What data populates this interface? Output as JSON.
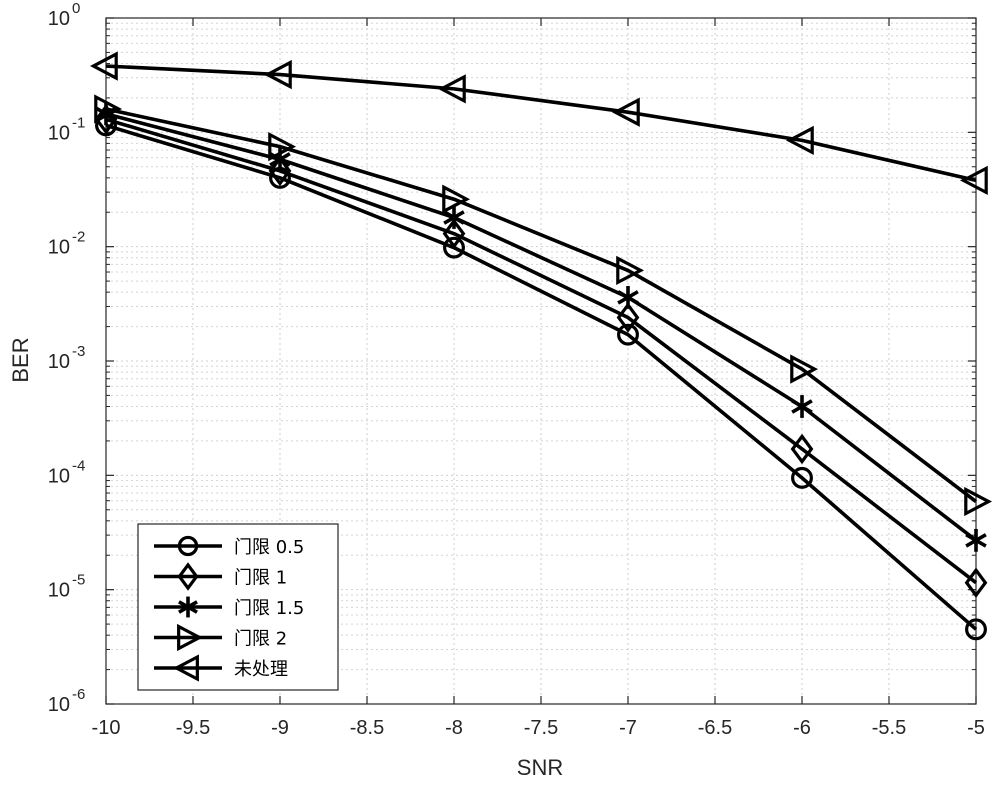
{
  "chart_data": {
    "type": "line",
    "title": "",
    "xlabel": "SNR",
    "ylabel": "BER",
    "xscale": "linear",
    "yscale": "log",
    "xlim": [
      -10,
      -5
    ],
    "ylim": [
      1e-06,
      1
    ],
    "grid": true,
    "minor_grid": true,
    "legend_position": "bottom-left",
    "x_ticks": [
      "-10",
      "-9.5",
      "-9",
      "-8.5",
      "-8",
      "-7.5",
      "-7",
      "-6.5",
      "-6",
      "-5.5",
      "-5"
    ],
    "y_ticks": [
      {
        "base": "10",
        "exp": "-6"
      },
      {
        "base": "10",
        "exp": "-5"
      },
      {
        "base": "10",
        "exp": "-4"
      },
      {
        "base": "10",
        "exp": "-3"
      },
      {
        "base": "10",
        "exp": "-2"
      },
      {
        "base": "10",
        "exp": "-1"
      },
      {
        "base": "10",
        "exp": "0"
      }
    ],
    "x": [
      -10,
      -9,
      -8,
      -7,
      -6,
      -5
    ],
    "series": [
      {
        "name": "门限 0.5",
        "marker": "circle",
        "color": "#000000",
        "values": [
          0.115,
          0.04,
          0.0098,
          0.0017,
          9.5e-05,
          4.5e-06
        ]
      },
      {
        "name": "门限 1",
        "marker": "diamond",
        "color": "#000000",
        "values": [
          0.13,
          0.046,
          0.013,
          0.0024,
          0.00017,
          1.15e-05
        ]
      },
      {
        "name": "门限 1.5",
        "marker": "asterisk",
        "color": "#000000",
        "values": [
          0.145,
          0.058,
          0.018,
          0.0036,
          0.0004,
          2.7e-05
        ]
      },
      {
        "name": "门限 2",
        "marker": "triangle-right",
        "color": "#000000",
        "values": [
          0.16,
          0.075,
          0.026,
          0.0062,
          0.00085,
          5.9e-05
        ]
      },
      {
        "name": "未处理",
        "marker": "triangle-left",
        "color": "#000000",
        "values": [
          0.38,
          0.32,
          0.24,
          0.15,
          0.085,
          0.038
        ]
      }
    ]
  }
}
